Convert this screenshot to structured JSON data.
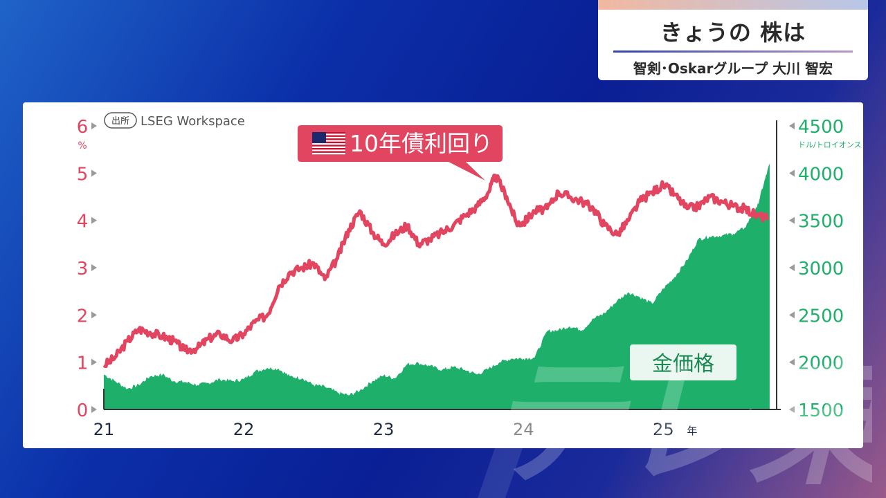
{
  "header": {
    "title": "きょうの 株は",
    "subtitle": "智剣･Oskarグループ 大川 智宏"
  },
  "source": {
    "tag": "出所",
    "name": "LSEG Workspace"
  },
  "colors": {
    "yield": "#e2455f",
    "gold": "#1eb06a",
    "card": "#ffffff",
    "x_axis_text": "#1f2a44",
    "x_axis_highlight": "#8a8a8a"
  },
  "chart_data": {
    "type": "line",
    "x_tick_labels": [
      "21",
      "22",
      "23",
      "24",
      "25"
    ],
    "x_unit": "年",
    "x_highlight_tick": "24",
    "left_axis": {
      "unit": "%",
      "ticks": [
        "0",
        "1",
        "2",
        "3",
        "4",
        "5",
        "6"
      ],
      "ylim": [
        0,
        6
      ]
    },
    "right_axis": {
      "unit": "ドル/トロイオンス",
      "ticks": [
        "1500",
        "2000",
        "2500",
        "3000",
        "3500",
        "4000",
        "4500"
      ],
      "ylim": [
        1500,
        4500
      ]
    },
    "series": [
      {
        "name": "10年債利回り",
        "flag": "us-flag",
        "axis": "left",
        "kind": "line",
        "points": [
          [
            2021.0,
            0.93
          ],
          [
            2021.08,
            1.1
          ],
          [
            2021.17,
            1.45
          ],
          [
            2021.25,
            1.7
          ],
          [
            2021.33,
            1.63
          ],
          [
            2021.42,
            1.55
          ],
          [
            2021.5,
            1.45
          ],
          [
            2021.58,
            1.25
          ],
          [
            2021.67,
            1.3
          ],
          [
            2021.75,
            1.5
          ],
          [
            2021.83,
            1.6
          ],
          [
            2021.92,
            1.45
          ],
          [
            2022.0,
            1.6
          ],
          [
            2022.08,
            1.85
          ],
          [
            2022.17,
            2.0
          ],
          [
            2022.25,
            2.6
          ],
          [
            2022.33,
            2.9
          ],
          [
            2022.42,
            3.0
          ],
          [
            2022.5,
            3.1
          ],
          [
            2022.58,
            2.75
          ],
          [
            2022.67,
            3.2
          ],
          [
            2022.75,
            3.8
          ],
          [
            2022.83,
            4.2
          ],
          [
            2022.92,
            3.75
          ],
          [
            2023.0,
            3.5
          ],
          [
            2023.08,
            3.7
          ],
          [
            2023.17,
            3.9
          ],
          [
            2023.25,
            3.5
          ],
          [
            2023.33,
            3.6
          ],
          [
            2023.42,
            3.75
          ],
          [
            2023.5,
            3.9
          ],
          [
            2023.58,
            4.1
          ],
          [
            2023.67,
            4.3
          ],
          [
            2023.75,
            4.6
          ],
          [
            2023.8,
            4.95
          ],
          [
            2023.88,
            4.5
          ],
          [
            2023.95,
            3.95
          ],
          [
            2024.0,
            3.95
          ],
          [
            2024.08,
            4.2
          ],
          [
            2024.17,
            4.25
          ],
          [
            2024.25,
            4.6
          ],
          [
            2024.33,
            4.5
          ],
          [
            2024.42,
            4.4
          ],
          [
            2024.5,
            4.25
          ],
          [
            2024.58,
            3.9
          ],
          [
            2024.67,
            3.7
          ],
          [
            2024.75,
            4.0
          ],
          [
            2024.83,
            4.4
          ],
          [
            2024.92,
            4.6
          ],
          [
            2025.0,
            4.75
          ],
          [
            2025.08,
            4.55
          ],
          [
            2025.17,
            4.25
          ],
          [
            2025.25,
            4.3
          ],
          [
            2025.33,
            4.5
          ],
          [
            2025.42,
            4.4
          ],
          [
            2025.5,
            4.3
          ],
          [
            2025.58,
            4.25
          ],
          [
            2025.67,
            4.1
          ],
          [
            2025.75,
            4.05
          ]
        ]
      },
      {
        "name": "金価格",
        "axis": "right",
        "kind": "area",
        "points": [
          [
            2021.0,
            1870
          ],
          [
            2021.08,
            1800
          ],
          [
            2021.17,
            1720
          ],
          [
            2021.25,
            1760
          ],
          [
            2021.33,
            1850
          ],
          [
            2021.42,
            1870
          ],
          [
            2021.5,
            1800
          ],
          [
            2021.58,
            1790
          ],
          [
            2021.67,
            1760
          ],
          [
            2021.75,
            1780
          ],
          [
            2021.83,
            1820
          ],
          [
            2021.92,
            1800
          ],
          [
            2022.0,
            1820
          ],
          [
            2022.08,
            1900
          ],
          [
            2022.17,
            1940
          ],
          [
            2022.25,
            1930
          ],
          [
            2022.33,
            1850
          ],
          [
            2022.42,
            1830
          ],
          [
            2022.5,
            1760
          ],
          [
            2022.58,
            1740
          ],
          [
            2022.67,
            1680
          ],
          [
            2022.75,
            1650
          ],
          [
            2022.83,
            1700
          ],
          [
            2022.92,
            1800
          ],
          [
            2023.0,
            1860
          ],
          [
            2023.08,
            1830
          ],
          [
            2023.17,
            1980
          ],
          [
            2023.25,
            1990
          ],
          [
            2023.33,
            1960
          ],
          [
            2023.42,
            1920
          ],
          [
            2023.5,
            1950
          ],
          [
            2023.58,
            1920
          ],
          [
            2023.67,
            1870
          ],
          [
            2023.75,
            1930
          ],
          [
            2023.83,
            2000
          ],
          [
            2023.92,
            2040
          ],
          [
            2024.0,
            2040
          ],
          [
            2024.08,
            2050
          ],
          [
            2024.17,
            2330
          ],
          [
            2024.25,
            2340
          ],
          [
            2024.33,
            2380
          ],
          [
            2024.42,
            2340
          ],
          [
            2024.5,
            2460
          ],
          [
            2024.58,
            2520
          ],
          [
            2024.67,
            2650
          ],
          [
            2024.75,
            2740
          ],
          [
            2024.83,
            2690
          ],
          [
            2024.92,
            2620
          ],
          [
            2025.0,
            2780
          ],
          [
            2025.08,
            2900
          ],
          [
            2025.17,
            3080
          ],
          [
            2025.25,
            3300
          ],
          [
            2025.33,
            3330
          ],
          [
            2025.42,
            3340
          ],
          [
            2025.5,
            3360
          ],
          [
            2025.58,
            3420
          ],
          [
            2025.67,
            3640
          ],
          [
            2025.72,
            3900
          ],
          [
            2025.76,
            4100
          ]
        ]
      }
    ],
    "annotations": [
      "10年債利回り",
      "金価格"
    ]
  },
  "watermark": "テレ東"
}
